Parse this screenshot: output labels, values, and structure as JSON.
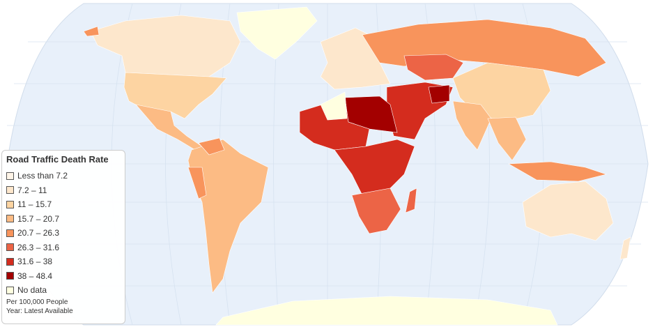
{
  "legend": {
    "title": "Road Traffic Death Rate",
    "items": [
      {
        "label": "Less than 7.2",
        "color": "#fff5e8"
      },
      {
        "label": "7.2 – 11",
        "color": "#fde7cc"
      },
      {
        "label": "11 – 15.7",
        "color": "#fdd4a2"
      },
      {
        "label": "15.7 – 20.7",
        "color": "#fcbb84"
      },
      {
        "label": "20.7 – 26.3",
        "color": "#f8945c"
      },
      {
        "label": "26.3 – 31.6",
        "color": "#ec6446"
      },
      {
        "label": "31.6 – 38",
        "color": "#d42c1e"
      },
      {
        "label": "38 – 48.4",
        "color": "#a30000"
      },
      {
        "label": "No data",
        "color": "#ffffe0"
      }
    ],
    "notes": [
      "Per 100,000 People",
      "Year: Latest Available"
    ]
  }
}
